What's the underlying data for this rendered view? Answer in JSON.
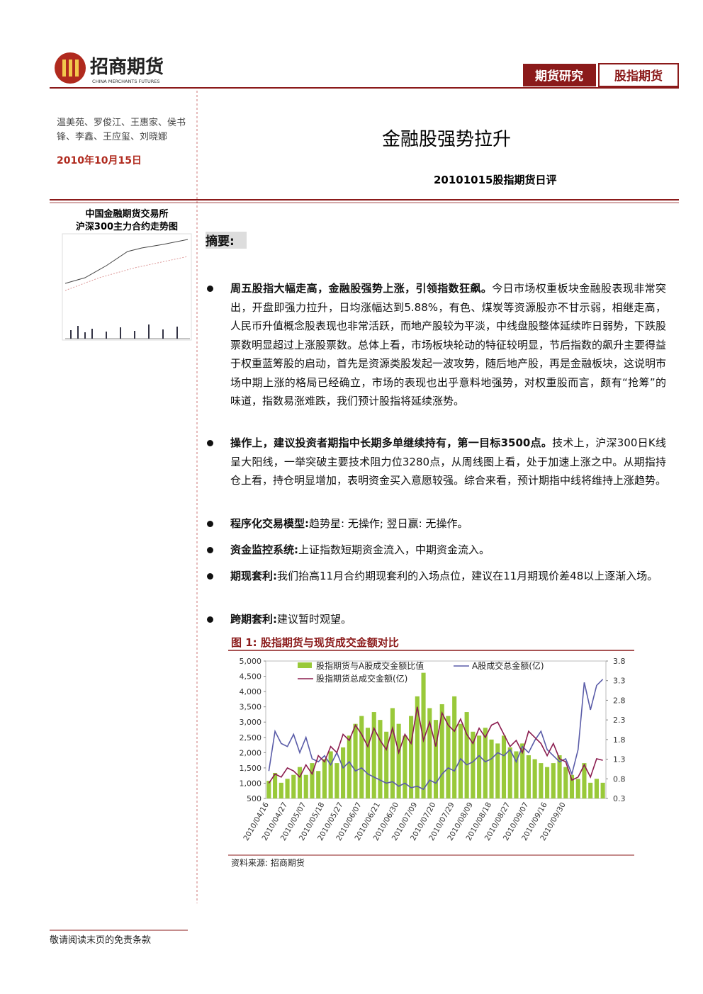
{
  "header": {
    "logo_name": "招商期货",
    "logo_en": "CHINA MERCHANTS FUTURES",
    "tag1": "期货研究",
    "tag2": "股指期货"
  },
  "sidebar": {
    "authors": "温美苑、罗俊江、王惠家、侯书锋、李鑫、王应玺、刘晓娜",
    "date": "2010年10月15日",
    "thumb_title_1": "中国金融期货交易所",
    "thumb_title_2": "沪深300主力合约走势图"
  },
  "title": "金融股强势拉升",
  "subtitle": "20101015股指期货日评",
  "summary_heading": "摘要:",
  "bullets": [
    {
      "bold": "周五股指大幅走高，金融股强势上涨，引领指数狂飙。",
      "text": "今日市场权重板块金融股表现非常突出，开盘即强力拉升，日均涨幅达到5.88%，有色、煤炭等资源股亦不甘示弱，相继走高，人民币升值概念股表现也非常活跃，而地产股较为平淡，中线盘股整体延续昨日弱势，下跌股票数明显超过上涨股票数。总体上看，市场板块轮动的特征较明显，节后指数的飙升主要得益于权重蓝筹股的启动，首先是资源类股发起一波攻势，随后地产股，再是金融板块，这说明市场中期上涨的格局已经确立，市场的表现也出乎意料地强势，对权重股而言，颇有“抢筹”的味道，指数易涨难跌，我们预计股指将延续涨势。"
    },
    {
      "bold": "操作上，建议投资者期指中长期多单继续持有，第一目标3500点。",
      "text": "技术上，沪深300日K线呈大阳线，一举突破主要技术阻力位3280点，从周线图上看，处于加速上涨之中。从期指持仓上看，持仓明显增加，表明资金买入意愿较强。综合来看，预计期指中线将维持上涨趋势。"
    },
    {
      "bold": "程序化交易模型:",
      "text": "趋势星: 无操作; 翌日赢: 无操作。"
    },
    {
      "bold": "资金监控系统:",
      "text": "上证指数短期资金流入，中期资金流入。"
    },
    {
      "bold": "期现套利:",
      "text": "我们抬高11月合约期现套利的入场点位，建议在11月期现价差48以上逐渐入场。"
    },
    {
      "bold": "跨期套利:",
      "text": "建议暂时观望。"
    }
  ],
  "figure": {
    "caption": "图 1: 股指期货与现货成交金额对比",
    "source": "资料来源: 招商期货"
  },
  "footer": "敬请阅读末页的免责条款",
  "chart_data": {
    "type": "combo",
    "legend": "top",
    "categories": [
      "2010/04/16",
      null,
      null,
      "2010/04/27",
      null,
      null,
      "2010/05/07",
      null,
      null,
      "2010/05/18",
      null,
      null,
      "2010/05/27",
      null,
      null,
      "2010/06/07",
      null,
      null,
      "2010/06/21",
      null,
      null,
      "2010/06/30",
      null,
      null,
      "2010/07/09",
      null,
      null,
      "2010/07/20",
      null,
      null,
      "2010/07/29",
      null,
      null,
      "2010/08/09",
      null,
      null,
      "2010/08/18",
      null,
      null,
      "2010/08/27",
      null,
      null,
      "2010/09/07",
      null,
      null,
      "2010/09/16",
      null,
      null,
      "2010/09/30",
      null,
      null,
      null,
      null,
      null,
      null
    ],
    "ylim": [
      500,
      5000
    ],
    "yticks": [
      500,
      {
        "value": 1000,
        "label": "1,000"
      },
      {
        "value": 1500,
        "label": "1,500"
      },
      {
        "value": 2000,
        "label": "2,000"
      },
      {
        "value": 2500,
        "label": "2,500"
      },
      {
        "value": 3000,
        "label": "3,000"
      },
      {
        "value": 3500,
        "label": "3,500"
      },
      {
        "value": 4000,
        "label": "4,000"
      },
      {
        "value": 4500,
        "label": "4,500"
      },
      {
        "value": 5000,
        "label": "5,000"
      }
    ],
    "y2lim": [
      0.3,
      3.8
    ],
    "y2ticks": [
      0.3,
      0.8,
      1.3,
      1.8,
      2.3,
      2.8,
      3.3,
      3.8
    ],
    "series": [
      {
        "name": "股指期货与A股成交金额比值",
        "type": "bar",
        "axis": "y2",
        "color": "#99c93a",
        "values": [
          0.75,
          0.95,
          0.7,
          0.8,
          0.9,
          1.1,
          0.9,
          1.2,
          1.0,
          1.3,
          1.5,
          1.2,
          1.6,
          1.9,
          2.2,
          2.4,
          2.1,
          2.5,
          2.3,
          2.0,
          2.6,
          2.2,
          1.9,
          2.4,
          2.9,
          3.5,
          2.6,
          2.3,
          2.7,
          2.4,
          2.9,
          2.2,
          2.5,
          2.0,
          1.9,
          2.1,
          1.8,
          1.7,
          1.9,
          1.6,
          1.5,
          1.7,
          1.4,
          1.3,
          1.2,
          1.1,
          1.2,
          1.4,
          1.1,
          0.9,
          0.8,
          1.2,
          0.7,
          0.8,
          0.7
        ]
      },
      {
        "name": "A股成交总金额(亿)",
        "type": "line",
        "color": "#5a5ca8",
        "values": [
          1400,
          2700,
          2300,
          2200,
          2600,
          2000,
          2500,
          1800,
          1700,
          1900,
          1600,
          2000,
          1500,
          1700,
          1400,
          1500,
          1300,
          1200,
          1100,
          1000,
          1050,
          900,
          1000,
          850,
          900,
          800,
          1100,
          1000,
          1300,
          1500,
          1400,
          1800,
          1600,
          1700,
          1900,
          1700,
          1800,
          2000,
          1900,
          2100,
          1700,
          2200,
          2000,
          2400,
          2700,
          2100,
          1900,
          1700,
          1800,
          1300,
          2100,
          4300,
          3400,
          4200,
          4400
        ]
      },
      {
        "name": "股指期货总成交金额(亿)",
        "type": "line",
        "color": "#8b1d4f",
        "values": [
          1000,
          1300,
          1200,
          1500,
          1400,
          1200,
          1600,
          1300,
          1900,
          1700,
          2200,
          2000,
          2600,
          2400,
          2900,
          2600,
          2200,
          2800,
          2400,
          2100,
          2800,
          2000,
          2600,
          2300,
          3500,
          2400,
          3000,
          2200,
          3300,
          2900,
          2700,
          3100,
          2600,
          2300,
          2800,
          2500,
          2900,
          3000,
          2600,
          2200,
          2400,
          2000,
          2700,
          2500,
          2300,
          1900,
          2300,
          1800,
          1700,
          1100,
          1200,
          1600,
          1200,
          1800,
          1750
        ]
      }
    ]
  }
}
